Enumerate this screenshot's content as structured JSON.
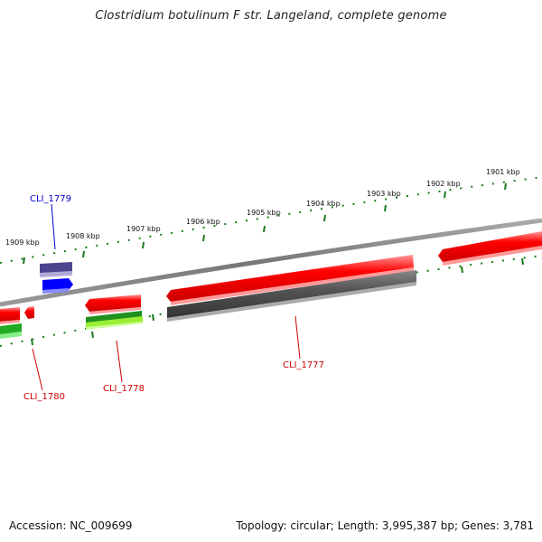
{
  "title": "Clostridium botulinum F str. Langeland, complete genome",
  "accession": "Accession: NC_009699",
  "stats": "Topology: circular; Length: 3,995,387 bp; Genes: 3,781",
  "scale_labels": [
    "1901 kbp",
    "1902 kbp",
    "1903 kbp",
    "1904 kbp",
    "1905 kbp",
    "1906 kbp",
    "1907 kbp",
    "1908 kbp",
    "1909 kbp"
  ],
  "genes": [
    {
      "label": "CLI_1779",
      "color": "#0000cc"
    },
    {
      "label": "CLI_1780",
      "color": "#cc0000"
    },
    {
      "label": "CLI_1778",
      "color": "#cc0000"
    },
    {
      "label": "CLI_1777",
      "color": "#cc0000"
    }
  ],
  "colors": {
    "forward_cds": "#ff0000",
    "reverse_cds": "#ff0000",
    "cog_blue": "#0000ff",
    "cog_purple": "#4b4590",
    "cog_green": "#22aa22",
    "cog_lime": "#99ee33",
    "cog_gray": "#555555",
    "backbone": "#888888",
    "ruler": "#1a7a1a"
  }
}
